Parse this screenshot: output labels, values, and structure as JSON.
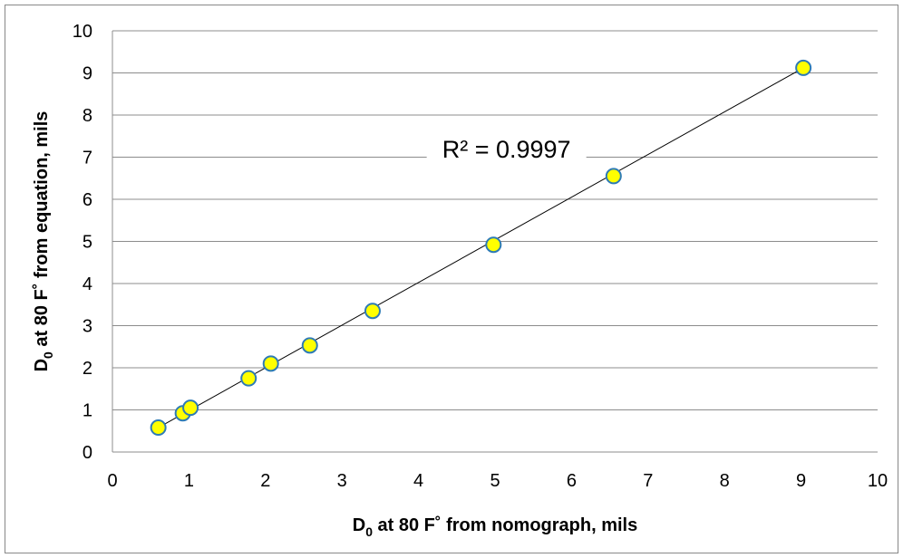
{
  "chart_data": {
    "type": "scatter",
    "title": "",
    "xlabel": {
      "main": "D",
      "sub": "0",
      "rest": " at 80 F˚ from nomograph, mils"
    },
    "ylabel": {
      "main": "D",
      "sub": "0",
      "rest": " at 80 F˚ from equation, mils"
    },
    "xlim": [
      0,
      10
    ],
    "ylim": [
      0,
      10
    ],
    "xticks": [
      0,
      1,
      2,
      3,
      4,
      5,
      6,
      7,
      8,
      9,
      10
    ],
    "yticks": [
      0,
      1,
      2,
      3,
      4,
      5,
      6,
      7,
      8,
      9,
      10
    ],
    "grid": "horizontal",
    "series": [
      {
        "x": [
          0.6,
          0.92,
          1.02,
          1.78,
          2.07,
          2.58,
          3.4,
          4.98,
          6.55,
          9.03
        ],
        "y": [
          0.58,
          0.92,
          1.05,
          1.75,
          2.1,
          2.53,
          3.35,
          4.92,
          6.55,
          9.12
        ],
        "marker_fill": "#ffff00",
        "marker_stroke": "#2e7bb5"
      }
    ],
    "trendline": {
      "x": [
        0.6,
        9.03
      ],
      "y": [
        0.58,
        9.12
      ],
      "color": "#000000"
    },
    "annotation": "R² = 0.9997",
    "annotation_anchor": {
      "x": 5.15,
      "y": 7.2
    }
  }
}
